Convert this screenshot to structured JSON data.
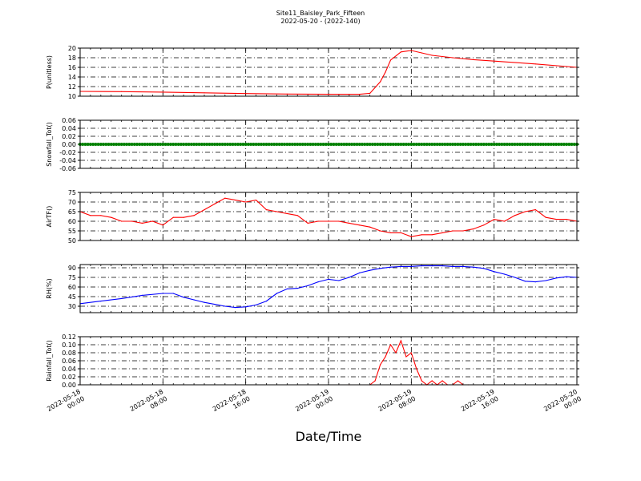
{
  "figure": {
    "title": "Site11_Baisley_Park_Fifteen",
    "subtitle": "2022-05-20 - (2022-140)",
    "xlabel": "Date/Time"
  },
  "x_axis": {
    "start": "2022-05-18 00:00",
    "end": "2022-05-20 00:00",
    "tick_labels": [
      [
        "2022-05-18",
        "00:00"
      ],
      [
        "2022-05-18",
        "08:00"
      ],
      [
        "2022-05-18",
        "16:00"
      ],
      [
        "2022-05-19",
        "00:00"
      ],
      [
        "2022-05-19",
        "08:00"
      ],
      [
        "2022-05-19",
        "16:00"
      ],
      [
        "2022-05-20",
        "00:00"
      ]
    ]
  },
  "chart_data": [
    {
      "type": "line",
      "ylabel": "P(unitless)",
      "ylim": [
        10,
        20
      ],
      "yticks": [
        "10",
        "12",
        "14",
        "16",
        "18",
        "20"
      ],
      "grid": true,
      "color": "#ff0000",
      "x_hours": [
        0,
        4,
        8,
        12,
        16,
        20,
        24,
        27,
        28,
        29,
        29.5,
        30,
        31,
        32,
        33,
        34,
        36,
        38,
        40,
        44,
        48
      ],
      "values": [
        11.0,
        10.95,
        10.85,
        10.7,
        10.55,
        10.45,
        10.4,
        10.4,
        10.6,
        13.0,
        15.0,
        17.5,
        19.2,
        19.5,
        19.0,
        18.5,
        18.0,
        17.6,
        17.3,
        16.7,
        16.0
      ]
    },
    {
      "type": "scatter",
      "ylabel": "Snowfall_Tot()",
      "ylim": [
        -0.06,
        0.06
      ],
      "yticks": [
        "-0.06",
        "-0.04",
        "-0.02",
        "0.00",
        "0.02",
        "0.04",
        "0.06"
      ],
      "grid": true,
      "color": "#008000",
      "x_hours_range": [
        0,
        48
      ],
      "constant_value": 0.0
    },
    {
      "type": "line",
      "ylabel": "AirTF()",
      "ylim": [
        50,
        75
      ],
      "yticks": [
        "50",
        "55",
        "60",
        "65",
        "70",
        "75"
      ],
      "grid": true,
      "color": "#ff0000",
      "x_hours": [
        0,
        1,
        2,
        3,
        4,
        5,
        6,
        7,
        8,
        9,
        10,
        11,
        12,
        13,
        14,
        15,
        16,
        17,
        18,
        19,
        20,
        21,
        22,
        23,
        24,
        25,
        26,
        27,
        28,
        29,
        30,
        31,
        32,
        33,
        34,
        35,
        36,
        37,
        38,
        39,
        40,
        41,
        42,
        43,
        44,
        45,
        46,
        47,
        48
      ],
      "values": [
        65,
        63,
        63,
        62,
        60,
        60,
        59,
        60,
        58,
        62,
        62,
        63,
        66,
        69,
        72,
        71,
        70,
        71,
        66,
        65,
        64,
        63,
        59,
        60,
        60,
        60,
        59,
        58,
        57,
        55,
        54,
        54,
        52,
        53,
        53,
        54,
        55,
        55,
        56,
        58,
        61,
        60,
        63,
        65,
        66,
        62,
        61,
        61,
        60
      ]
    },
    {
      "type": "line",
      "ylabel": "RH(%)",
      "ylim": [
        20,
        95
      ],
      "yticks": [
        "30",
        "45",
        "60",
        "75",
        "90"
      ],
      "grid": true,
      "color": "#0000ff",
      "x_hours": [
        0,
        2,
        4,
        6,
        8,
        9,
        10,
        11,
        12,
        13,
        14,
        15,
        16,
        17,
        18,
        19,
        20,
        21,
        22,
        23,
        24,
        25,
        26,
        27,
        28,
        29,
        30,
        31,
        32,
        33,
        34,
        35,
        36,
        37,
        38,
        39,
        40,
        41,
        42,
        43,
        44,
        45,
        46,
        47,
        48
      ],
      "values": [
        34,
        38,
        42,
        47,
        50,
        50,
        44,
        40,
        36,
        33,
        30,
        28,
        29,
        32,
        38,
        50,
        57,
        58,
        62,
        68,
        72,
        70,
        75,
        82,
        86,
        89,
        91,
        92,
        92,
        93,
        93,
        93,
        92,
        92,
        91,
        89,
        84,
        80,
        75,
        69,
        68,
        70,
        74,
        76,
        75
      ]
    },
    {
      "type": "line",
      "ylabel": "Rainfall_Tot()",
      "ylim": [
        0,
        0.12
      ],
      "yticks": [
        "0.00",
        "0.02",
        "0.04",
        "0.06",
        "0.08",
        "0.10",
        "0.12"
      ],
      "grid": true,
      "color": "#ff0000",
      "x_hours": [
        0,
        26,
        28,
        28.5,
        29,
        29.5,
        30,
        30.5,
        31,
        31.5,
        32,
        32.5,
        33,
        33.5,
        34,
        34.5,
        35,
        35.5,
        36,
        36.5,
        37,
        37.5,
        48
      ],
      "values": [
        0,
        0,
        0,
        0.01,
        0.05,
        0.07,
        0.1,
        0.08,
        0.11,
        0.07,
        0.08,
        0.04,
        0.01,
        0,
        0.01,
        0,
        0.01,
        0,
        0,
        0.01,
        0,
        0,
        0
      ]
    }
  ]
}
